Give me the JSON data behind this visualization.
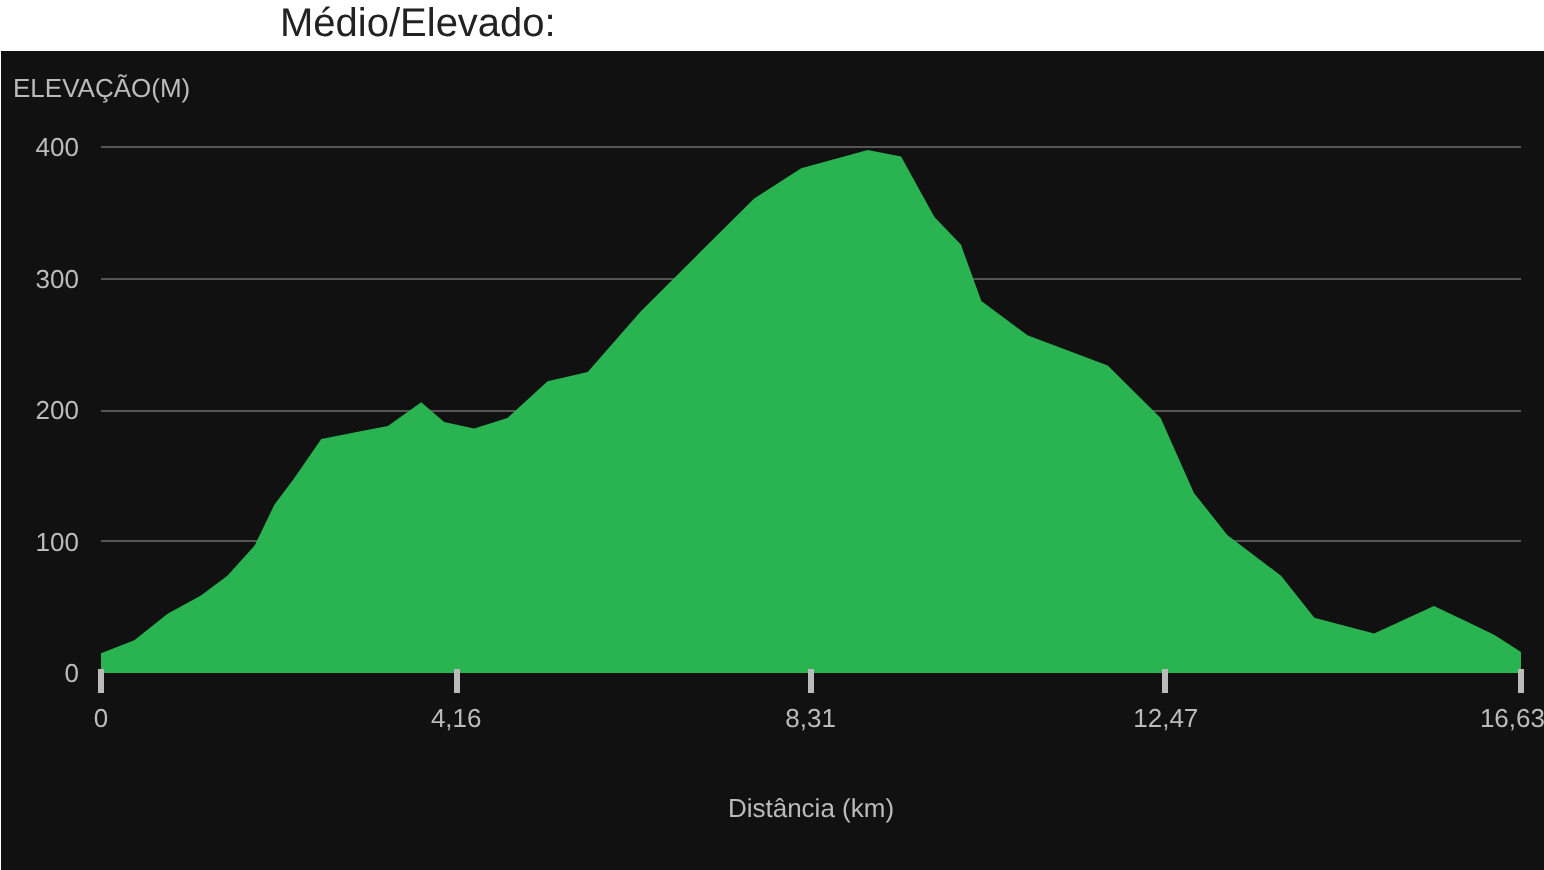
{
  "chart_data": {
    "type": "area",
    "annotations": [
      "Médio/Elevado:"
    ],
    "ylabel": "ELEVAÇÃO(M)",
    "xlabel": "Distância (km)",
    "x": [
      0,
      0.39,
      0.78,
      1.17,
      1.48,
      1.8,
      2.03,
      2.26,
      2.58,
      3.04,
      3.36,
      3.75,
      4.02,
      4.37,
      4.76,
      5.23,
      5.7,
      6.32,
      7.03,
      7.65,
      8.2,
      8.98,
      9.37,
      9.76,
      10.07,
      10.31,
      10.85,
      11.79,
      12.41,
      12.8,
      13.19,
      13.82,
      14.21,
      14.91,
      15.61,
      16.0,
      16.32,
      16.63
    ],
    "series": [
      {
        "color": "#2ab351",
        "values": [
          15,
          25,
          45,
          59,
          74,
          97,
          128,
          148,
          178,
          184,
          188,
          206,
          191,
          186,
          194,
          222,
          229,
          275,
          321,
          361,
          384,
          398,
          393,
          347,
          326,
          283,
          257,
          234,
          194,
          137,
          105,
          74,
          42,
          30,
          51,
          39,
          29,
          16
        ]
      }
    ],
    "xlim": [
      0,
      16.63
    ],
    "xticks": [
      0,
      {
        "value": 4.16,
        "label": "4,16"
      },
      {
        "value": 8.31,
        "label": "8,31"
      },
      {
        "value": 12.47,
        "label": "12,47"
      },
      {
        "value": 16.63,
        "label": "16,63"
      }
    ],
    "ylim": [
      0,
      420
    ],
    "yticks": [
      0,
      100,
      200,
      300,
      400
    ],
    "grid": "y"
  }
}
